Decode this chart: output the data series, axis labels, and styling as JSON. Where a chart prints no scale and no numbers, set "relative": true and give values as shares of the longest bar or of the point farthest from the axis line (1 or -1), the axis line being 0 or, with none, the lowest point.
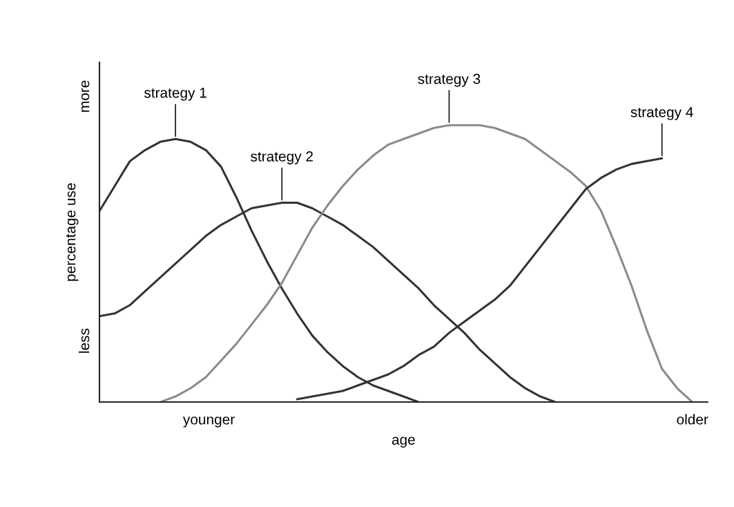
{
  "chart_data": {
    "type": "line",
    "relative": true,
    "xlabel": "age",
    "ylabel": "percentage use",
    "legend": false,
    "marker": "none",
    "line_style": "solid",
    "annotations": [
      "more",
      "less",
      "younger",
      "older"
    ],
    "categories": [
      null,
      null,
      null,
      null,
      null,
      null,
      null,
      null,
      null,
      null,
      null,
      null,
      null,
      null,
      null,
      null,
      null,
      null,
      null,
      null,
      null,
      null,
      null,
      null,
      null,
      null,
      null,
      null,
      null,
      null,
      null,
      null,
      null,
      null,
      null,
      null,
      null,
      null,
      null,
      null,
      null
    ],
    "series": [
      {
        "name": "strategy 1",
        "color": "#333333",
        "values": [
          0.69,
          0.78,
          0.87,
          0.91,
          0.94,
          0.95,
          0.94,
          0.91,
          0.85,
          0.74,
          0.62,
          0.51,
          0.41,
          0.32,
          0.24,
          0.18,
          0.13,
          0.09,
          0.06,
          0.04,
          0.02,
          0,
          null,
          null,
          null,
          null,
          null,
          null,
          null,
          null,
          null,
          null,
          null,
          null,
          null,
          null,
          null,
          null,
          null,
          null,
          null
        ]
      },
      {
        "name": "strategy 2",
        "color": "#333333",
        "values": [
          0.31,
          0.32,
          0.35,
          0.4,
          0.45,
          0.5,
          0.55,
          0.6,
          0.64,
          0.67,
          0.7,
          0.71,
          0.72,
          0.72,
          0.7,
          0.67,
          0.64,
          0.6,
          0.56,
          0.51,
          0.46,
          0.41,
          0.35,
          0.3,
          0.25,
          0.19,
          0.14,
          0.09,
          0.05,
          0.02,
          0,
          null,
          null,
          null,
          null,
          null,
          null,
          null,
          null,
          null,
          null
        ]
      },
      {
        "name": "strategy 3",
        "color": "#8a8a8a",
        "values": [
          null,
          null,
          null,
          null,
          0,
          0.02,
          0.05,
          0.09,
          0.15,
          0.21,
          0.28,
          0.35,
          0.43,
          0.53,
          0.63,
          0.71,
          0.78,
          0.84,
          0.89,
          0.93,
          0.95,
          0.97,
          0.99,
          1.0,
          1.0,
          1.0,
          0.99,
          0.97,
          0.95,
          0.91,
          0.87,
          0.83,
          0.78,
          0.69,
          0.56,
          0.42,
          0.26,
          0.12,
          0.05,
          0,
          null
        ]
      },
      {
        "name": "strategy 4",
        "color": "#333333",
        "values": [
          null,
          null,
          null,
          null,
          null,
          null,
          null,
          null,
          null,
          null,
          null,
          null,
          null,
          0.01,
          0.02,
          0.03,
          0.04,
          0.06,
          0.08,
          0.1,
          0.13,
          0.17,
          0.2,
          0.25,
          0.29,
          0.33,
          0.37,
          0.42,
          0.49,
          0.56,
          0.63,
          0.7,
          0.77,
          0.81,
          0.84,
          0.86,
          0.87,
          0.88,
          null,
          null,
          null
        ]
      }
    ]
  }
}
